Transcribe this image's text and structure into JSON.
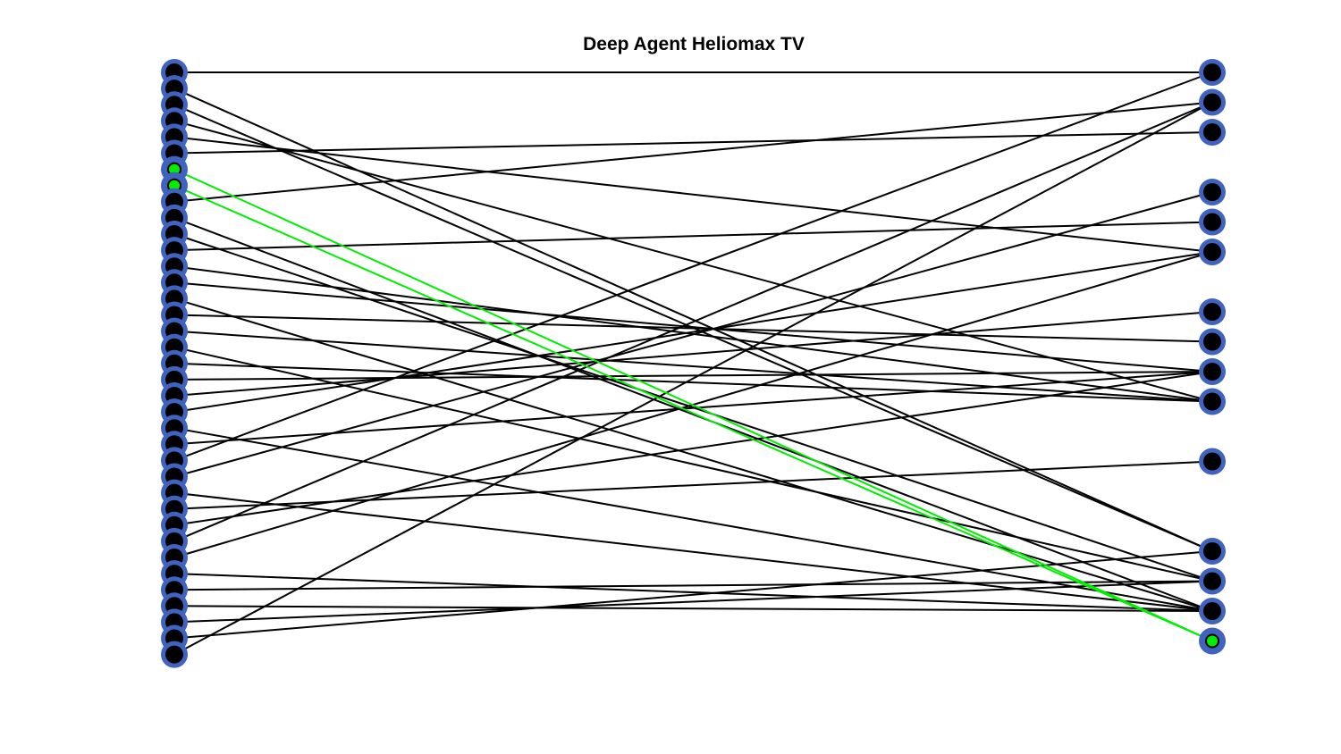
{
  "title": "Deep Agent Heliomax TV",
  "colors": {
    "edge": "#000000",
    "highlight": "#00ee00",
    "node_ring": "#3f63be",
    "node_fill": "#000000",
    "node_highlight_fill": "#00ee00",
    "background": "#ffffff"
  },
  "left_nodes": [
    {
      "id": 0
    },
    {
      "id": 1
    },
    {
      "id": 2
    },
    {
      "id": 3
    },
    {
      "id": 4
    },
    {
      "id": 5
    },
    {
      "id": 6,
      "highlighted": true
    },
    {
      "id": 7,
      "highlighted": true
    },
    {
      "id": 8
    },
    {
      "id": 9
    },
    {
      "id": 10
    },
    {
      "id": 11
    },
    {
      "id": 12
    },
    {
      "id": 13
    },
    {
      "id": 14
    },
    {
      "id": 15
    },
    {
      "id": 16
    },
    {
      "id": 17
    },
    {
      "id": 18
    },
    {
      "id": 19
    },
    {
      "id": 20
    },
    {
      "id": 21
    },
    {
      "id": 22
    },
    {
      "id": 23
    },
    {
      "id": 24
    },
    {
      "id": 25
    },
    {
      "id": 26
    },
    {
      "id": 27
    },
    {
      "id": 28
    },
    {
      "id": 29
    },
    {
      "id": 30
    },
    {
      "id": 31
    },
    {
      "id": 32
    },
    {
      "id": 33
    },
    {
      "id": 34
    },
    {
      "id": 35
    },
    {
      "id": 36
    }
  ],
  "right_nodes": [
    {
      "id": 0
    },
    {
      "id": 1
    },
    {
      "id": 2
    },
    {
      "id": 4
    },
    {
      "id": 5
    },
    {
      "id": 6
    },
    {
      "id": 8
    },
    {
      "id": 9
    },
    {
      "id": 10
    },
    {
      "id": 11
    },
    {
      "id": 13
    },
    {
      "id": 16
    },
    {
      "id": 17
    },
    {
      "id": 18
    },
    {
      "id": 19,
      "highlighted": true
    }
  ],
  "edges": [
    {
      "from": 0,
      "to": 0
    },
    {
      "from": 1,
      "to": 16
    },
    {
      "from": 2,
      "to": 16
    },
    {
      "from": 3,
      "to": 11
    },
    {
      "from": 4,
      "to": 6
    },
    {
      "from": 5,
      "to": 2
    },
    {
      "from": 6,
      "to": 19,
      "highlighted": true
    },
    {
      "from": 7,
      "to": 19,
      "highlighted": true
    },
    {
      "from": 8,
      "to": 1
    },
    {
      "from": 9,
      "to": 18
    },
    {
      "from": 10,
      "to": 17
    },
    {
      "from": 11,
      "to": 5
    },
    {
      "from": 12,
      "to": 11
    },
    {
      "from": 13,
      "to": 10
    },
    {
      "from": 14,
      "to": 18
    },
    {
      "from": 15,
      "to": 9
    },
    {
      "from": 16,
      "to": 11
    },
    {
      "from": 17,
      "to": 17
    },
    {
      "from": 18,
      "to": 11
    },
    {
      "from": 19,
      "to": 10
    },
    {
      "from": 20,
      "to": 8
    },
    {
      "from": 21,
      "to": 6
    },
    {
      "from": 22,
      "to": 18
    },
    {
      "from": 23,
      "to": 10
    },
    {
      "from": 24,
      "to": 0
    },
    {
      "from": 25,
      "to": 4
    },
    {
      "from": 26,
      "to": 18
    },
    {
      "from": 27,
      "to": 13
    },
    {
      "from": 28,
      "to": 10
    },
    {
      "from": 29,
      "to": 1
    },
    {
      "from": 30,
      "to": 6
    },
    {
      "from": 31,
      "to": 18
    },
    {
      "from": 32,
      "to": 17
    },
    {
      "from": 33,
      "to": 18
    },
    {
      "from": 34,
      "to": 17
    },
    {
      "from": 35,
      "to": 16
    },
    {
      "from": 36,
      "to": 1
    }
  ]
}
